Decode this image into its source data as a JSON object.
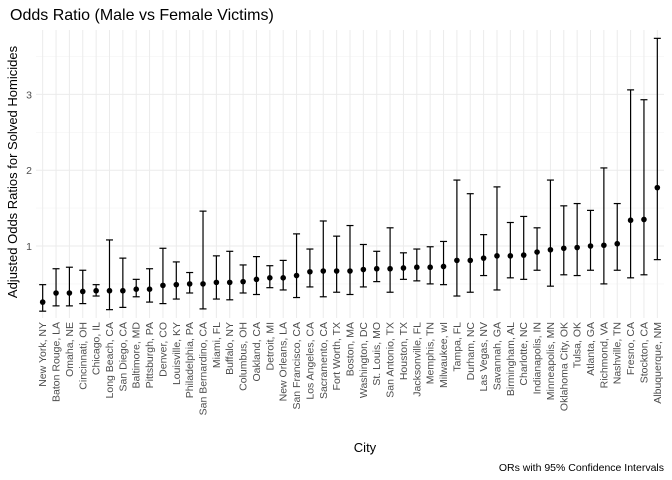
{
  "chart_data": {
    "type": "scatter",
    "title": "Odds Ratio (Male vs Female Victims)",
    "xlabel": "City",
    "ylabel": "Adjusted Odds Ratios for Solved Homicides",
    "caption": "ORs with 95% Confidence Intervals",
    "ylim": [
      0.05,
      3.85
    ],
    "yticks": [
      1,
      2,
      3
    ],
    "grid": true,
    "legend": "none",
    "categories": [
      "New York, NY",
      "Baton Rouge, LA",
      "Omaha, NE",
      "Cincinnati, OH",
      "Chicago, IL",
      "Long Beach, CA",
      "San Diego, CA",
      "Baltimore, MD",
      "Pittsburgh, PA",
      "Denver, CO",
      "Louisville, KY",
      "Philadelphia, PA",
      "San Bernardino, CA",
      "Miami, FL",
      "Buffalo, NY",
      "Columbus, OH",
      "Oakland, CA",
      "Detroit, MI",
      "New Orleans, LA",
      "San Francisco, CA",
      "Los Angeles, CA",
      "Sacramento, CA",
      "Fort Worth, TX",
      "Boston, MA",
      "Washington, DC",
      "St. Louis, MO",
      "San Antonio, TX",
      "Houston, TX",
      "Jacksonville, FL",
      "Memphis, TN",
      "Milwaukee, wI",
      "Tampa, FL",
      "Durham, NC",
      "Las Vegas, NV",
      "Savannah, GA",
      "Birmingham, AL",
      "Charlotte, NC",
      "Indianapolis, IN",
      "Minneapolis, MN",
      "Oklahoma City, OK",
      "Tulsa, OK",
      "Atlanta, GA",
      "Richmond, VA",
      "Nashville, TN",
      "Fresno, CA",
      "Stockton, CA",
      "Albuquerque, NM"
    ],
    "or": [
      0.26,
      0.38,
      0.38,
      0.4,
      0.41,
      0.41,
      0.41,
      0.43,
      0.43,
      0.48,
      0.49,
      0.5,
      0.5,
      0.52,
      0.52,
      0.53,
      0.56,
      0.58,
      0.58,
      0.61,
      0.66,
      0.67,
      0.67,
      0.67,
      0.69,
      0.7,
      0.7,
      0.71,
      0.72,
      0.72,
      0.73,
      0.81,
      0.81,
      0.84,
      0.87,
      0.87,
      0.88,
      0.92,
      0.95,
      0.97,
      0.98,
      1.0,
      1.01,
      1.03,
      1.34,
      1.35,
      1.77
    ],
    "lower": [
      0.14,
      0.21,
      0.21,
      0.24,
      0.34,
      0.16,
      0.19,
      0.33,
      0.26,
      0.24,
      0.3,
      0.38,
      0.17,
      0.3,
      0.29,
      0.38,
      0.36,
      0.45,
      0.42,
      0.32,
      0.46,
      0.33,
      0.39,
      0.36,
      0.46,
      0.53,
      0.39,
      0.56,
      0.54,
      0.5,
      0.49,
      0.34,
      0.39,
      0.61,
      0.42,
      0.58,
      0.56,
      0.68,
      0.47,
      0.62,
      0.61,
      0.68,
      0.5,
      0.68,
      0.58,
      0.62,
      0.82
    ],
    "upper": [
      0.49,
      0.7,
      0.72,
      0.68,
      0.49,
      1.08,
      0.84,
      0.56,
      0.7,
      0.97,
      0.79,
      0.65,
      1.46,
      0.87,
      0.93,
      0.75,
      0.86,
      0.74,
      0.81,
      1.16,
      0.96,
      1.33,
      1.13,
      1.27,
      1.02,
      0.93,
      1.24,
      0.91,
      0.96,
      0.99,
      1.06,
      1.87,
      1.69,
      1.15,
      1.78,
      1.31,
      1.39,
      1.24,
      1.87,
      1.53,
      1.56,
      1.47,
      2.03,
      1.56,
      3.06,
      2.93,
      3.74
    ]
  }
}
